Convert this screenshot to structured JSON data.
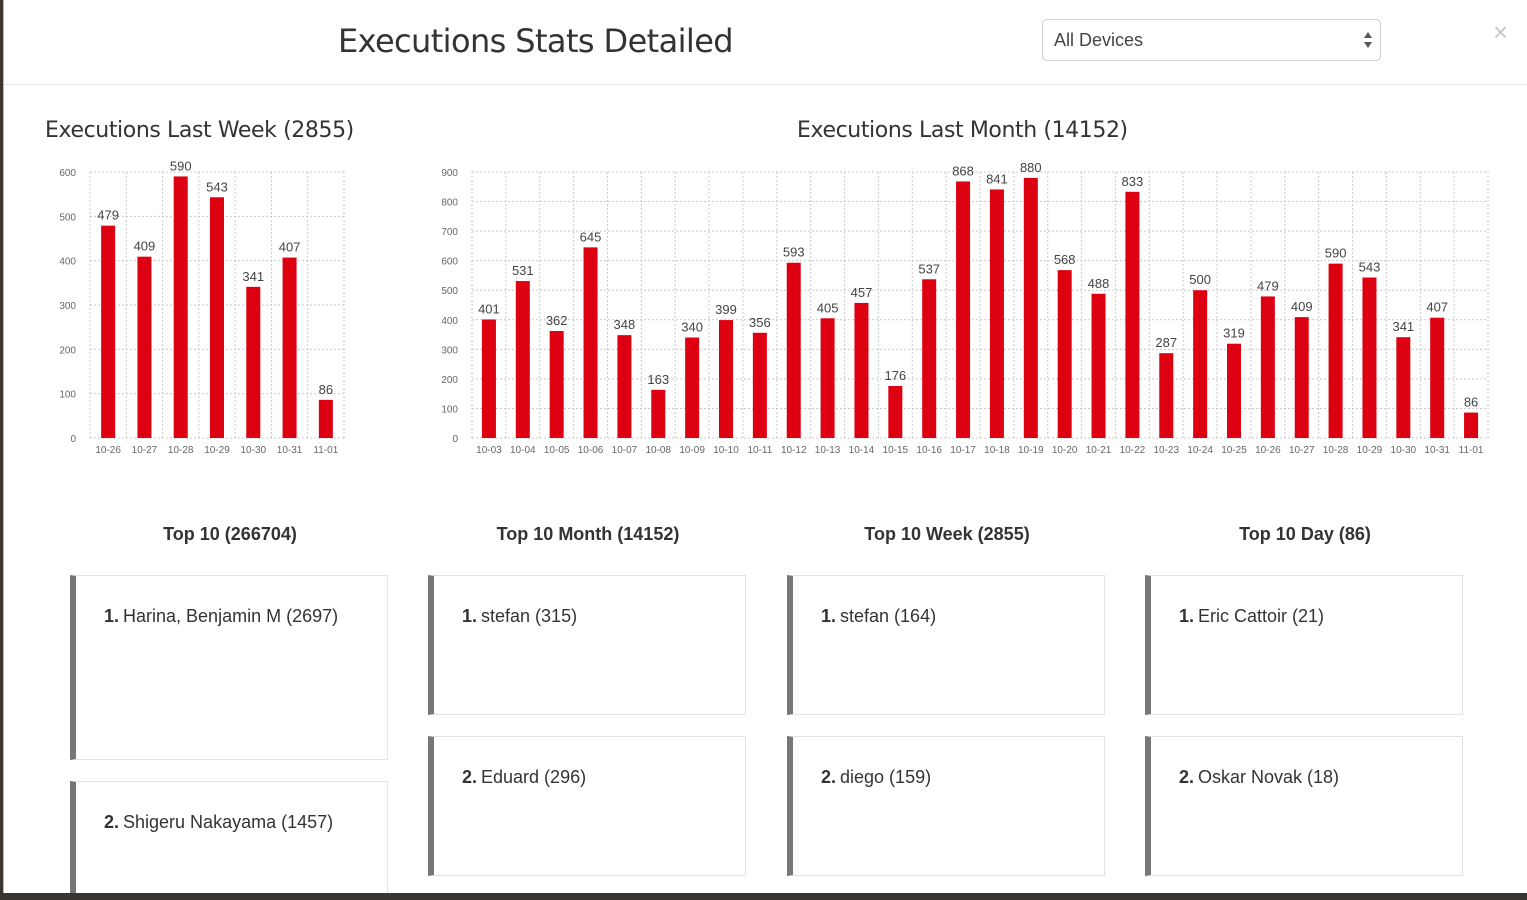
{
  "header": {
    "title": "Executions Stats Detailed",
    "device_select": {
      "value": "All Devices"
    },
    "close_label": "×"
  },
  "week_chart": {
    "title": "Executions Last Week (2855)"
  },
  "month_chart": {
    "title": "Executions Last Month (14152)"
  },
  "chart_data": [
    {
      "type": "bar",
      "title": "Executions Last Week (2855)",
      "categories": [
        "10-26",
        "10-27",
        "10-28",
        "10-29",
        "10-30",
        "10-31",
        "11-01"
      ],
      "values": [
        479,
        409,
        590,
        543,
        341,
        407,
        86
      ],
      "ylim": [
        0,
        600
      ],
      "yticks": [
        0,
        100,
        200,
        300,
        400,
        500,
        600
      ],
      "grid": true,
      "color": "#dd0011"
    },
    {
      "type": "bar",
      "title": "Executions Last Month (14152)",
      "categories": [
        "10-03",
        "10-04",
        "10-05",
        "10-06",
        "10-07",
        "10-08",
        "10-09",
        "10-10",
        "10-11",
        "10-12",
        "10-13",
        "10-14",
        "10-15",
        "10-16",
        "10-17",
        "10-18",
        "10-19",
        "10-20",
        "10-21",
        "10-22",
        "10-23",
        "10-24",
        "10-25",
        "10-26",
        "10-27",
        "10-28",
        "10-29",
        "10-30",
        "10-31",
        "11-01"
      ],
      "values": [
        401,
        531,
        362,
        645,
        348,
        163,
        340,
        399,
        356,
        593,
        405,
        457,
        176,
        537,
        868,
        841,
        880,
        568,
        488,
        833,
        287,
        500,
        319,
        479,
        409,
        590,
        543,
        341,
        407,
        86
      ],
      "ylim": [
        0,
        900
      ],
      "yticks": [
        0,
        100,
        200,
        300,
        400,
        500,
        600,
        700,
        800,
        900
      ],
      "grid": true,
      "color": "#dd0011"
    }
  ],
  "top_lists": [
    {
      "heading": "Top 10 (266704)",
      "items": [
        {
          "rank": "1.",
          "text": "Harina, Benjamin M (2697)"
        },
        {
          "rank": "2.",
          "text": "Shigeru Nakayama (1457)"
        }
      ]
    },
    {
      "heading": "Top 10 Month (14152)",
      "items": [
        {
          "rank": "1.",
          "text": "stefan (315)"
        },
        {
          "rank": "2.",
          "text": "Eduard (296)"
        }
      ]
    },
    {
      "heading": "Top 10 Week (2855)",
      "items": [
        {
          "rank": "1.",
          "text": "stefan (164)"
        },
        {
          "rank": "2.",
          "text": "diego (159)"
        }
      ]
    },
    {
      "heading": "Top 10 Day (86)",
      "items": [
        {
          "rank": "1.",
          "text": "Eric Cattoir (21)"
        },
        {
          "rank": "2.",
          "text": "Oskar Novak (18)"
        }
      ]
    }
  ],
  "colors": {
    "bar": "#dd0011",
    "card_accent": "#777777"
  }
}
